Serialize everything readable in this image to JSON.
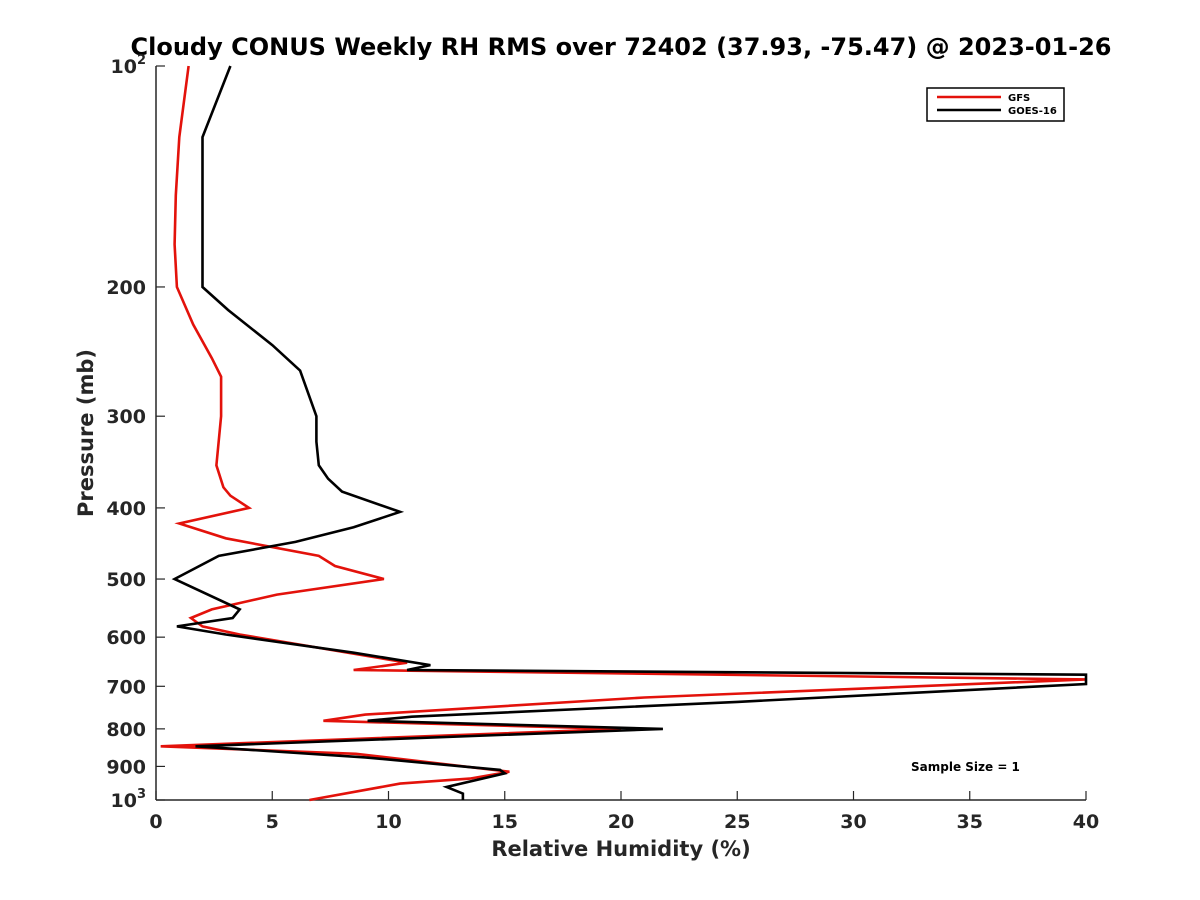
{
  "chart_data": {
    "type": "line",
    "title": "Cloudy CONUS Weekly RH RMS over 72402 (37.93, -75.47) @ 2023-01-26",
    "xlabel": "Relative Humidity (%)",
    "ylabel": "Pressure (mb)",
    "xlim": [
      0,
      40
    ],
    "ylim": [
      100,
      1000
    ],
    "y_scale": "log",
    "y_reversed": true,
    "grid": false,
    "legend_position": "top-right",
    "x_ticks": [
      "0",
      "5",
      "10",
      "15",
      "20",
      "25",
      "30",
      "35",
      "40"
    ],
    "y_ticks": [
      {
        "value": 100,
        "base": "10",
        "exp": "2"
      },
      {
        "value": 200,
        "label": "200"
      },
      {
        "value": 300,
        "label": "300"
      },
      {
        "value": 400,
        "label": "400"
      },
      {
        "value": 500,
        "label": "500"
      },
      {
        "value": 600,
        "label": "600"
      },
      {
        "value": 700,
        "label": "700"
      },
      {
        "value": 800,
        "label": "800"
      },
      {
        "value": 900,
        "label": "900"
      },
      {
        "value": 1000,
        "base": "10",
        "exp": "3"
      }
    ],
    "series": [
      {
        "name": "GFS",
        "color": "#e3120b",
        "points": [
          [
            1.4,
            100
          ],
          [
            1.0,
            125
          ],
          [
            0.85,
            150
          ],
          [
            0.8,
            175
          ],
          [
            0.9,
            200
          ],
          [
            1.6,
            225
          ],
          [
            2.4,
            250
          ],
          [
            2.8,
            265
          ],
          [
            2.8,
            300
          ],
          [
            2.6,
            350
          ],
          [
            2.9,
            375
          ],
          [
            3.2,
            385
          ],
          [
            4.0,
            400
          ],
          [
            1.0,
            420
          ],
          [
            3.0,
            440
          ],
          [
            7.0,
            465
          ],
          [
            7.7,
            480
          ],
          [
            9.8,
            500
          ],
          [
            5.2,
            525
          ],
          [
            2.4,
            550
          ],
          [
            1.5,
            565
          ],
          [
            2.0,
            580
          ],
          [
            3.6,
            595
          ],
          [
            10.8,
            650
          ],
          [
            8.5,
            665
          ],
          [
            40.0,
            685
          ],
          [
            21.0,
            725
          ],
          [
            9.0,
            765
          ],
          [
            7.2,
            780
          ],
          [
            20.0,
            800
          ],
          [
            0.2,
            845
          ],
          [
            8.6,
            865
          ],
          [
            15.2,
            915
          ],
          [
            13.5,
            935
          ],
          [
            10.5,
            950
          ],
          [
            6.6,
            1000
          ]
        ]
      },
      {
        "name": "GOES-16",
        "color": "#000000",
        "points": [
          [
            3.2,
            100
          ],
          [
            2.0,
            125
          ],
          [
            2.0,
            150
          ],
          [
            2.0,
            175
          ],
          [
            2.0,
            200
          ],
          [
            3.1,
            215
          ],
          [
            5.0,
            240
          ],
          [
            6.2,
            260
          ],
          [
            6.9,
            300
          ],
          [
            6.9,
            325
          ],
          [
            7.0,
            350
          ],
          [
            7.4,
            365
          ],
          [
            8.0,
            380
          ],
          [
            10.5,
            405
          ],
          [
            8.5,
            425
          ],
          [
            6.0,
            445
          ],
          [
            2.7,
            465
          ],
          [
            0.8,
            500
          ],
          [
            3.6,
            550
          ],
          [
            3.3,
            565
          ],
          [
            0.9,
            580
          ],
          [
            3.0,
            595
          ],
          [
            8.5,
            630
          ],
          [
            11.8,
            655
          ],
          [
            10.8,
            665
          ],
          [
            40.0,
            675
          ],
          [
            40.0,
            695
          ],
          [
            25.0,
            735
          ],
          [
            11.0,
            770
          ],
          [
            9.1,
            780
          ],
          [
            21.8,
            800
          ],
          [
            1.7,
            845
          ],
          [
            9.0,
            875
          ],
          [
            14.8,
            910
          ],
          [
            15.0,
            920
          ],
          [
            12.5,
            960
          ],
          [
            13.2,
            980
          ],
          [
            13.2,
            1000
          ]
        ]
      }
    ],
    "annotations": [
      {
        "text": "Sample Size = 1"
      }
    ]
  }
}
